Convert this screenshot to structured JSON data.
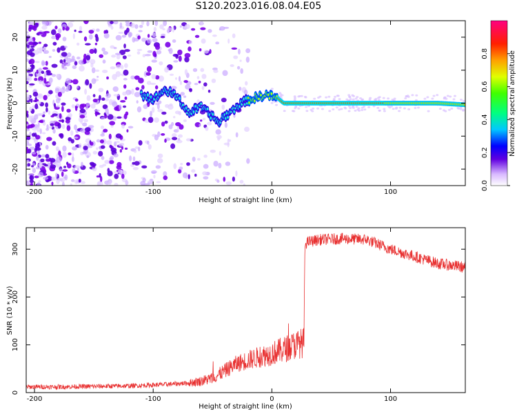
{
  "title": "S120.2023.016.08.04.E05",
  "colors": {
    "snr_line": "#e83030",
    "doppler_line": "#ff2020",
    "speckle": "#7a00e8",
    "axis": "#000000"
  },
  "chart_data": [
    {
      "type": "heatmap",
      "xlabel": "Height of straight line (km)",
      "ylabel": "Frequency (Hz)",
      "xlim": [
        -207,
        163
      ],
      "ylim": [
        -25,
        25
      ],
      "xticks": [
        -200,
        -100,
        0,
        100
      ],
      "xtick_labels": [
        "-200",
        "-100",
        "0",
        "100"
      ],
      "yticks": [
        -20,
        -10,
        0,
        10,
        20
      ],
      "ytick_labels": [
        "-20",
        "-10",
        "0",
        "10",
        "20"
      ],
      "colorbar": {
        "label": "Normalized spectral amplitude",
        "range": [
          0,
          1
        ],
        "ticks": [
          0.0,
          0.2,
          0.4,
          0.6,
          0.8
        ],
        "tick_labels": [
          "0.0",
          "0.2",
          "0.4",
          "0.6",
          "0.8"
        ]
      },
      "doppler_trace": {
        "x": [
          -110,
          -100,
          -90,
          -80,
          -70,
          -60,
          -50,
          -45,
          -40,
          -35,
          -30,
          -25,
          -20,
          -15,
          -10,
          -5,
          0,
          5,
          10,
          20,
          40,
          60,
          80,
          90,
          100,
          120,
          140,
          163
        ],
        "y": [
          3,
          1,
          4,
          2,
          -3,
          -1,
          -4,
          -6,
          -4,
          -3,
          -1,
          0,
          1,
          1.5,
          2,
          2.5,
          2,
          1.5,
          0,
          0,
          0,
          0,
          0,
          0,
          0,
          0,
          0,
          -0.5
        ]
      },
      "noise_until_km": -40,
      "grid": false
    },
    {
      "type": "line",
      "xlabel": "Height of straight line (km)",
      "ylabel": "SNR (10 * v/v)",
      "xlim": [
        -207,
        163
      ],
      "ylim": [
        0,
        345
      ],
      "xticks": [
        -200,
        -100,
        0,
        100
      ],
      "xtick_labels": [
        "-200",
        "-100",
        "0",
        "100"
      ],
      "yticks": [
        0,
        100,
        200,
        300
      ],
      "ytick_labels": [
        "0",
        "100",
        "200",
        "300"
      ],
      "series": [
        {
          "x": [
            -207,
            -180,
            -150,
            -120,
            -90,
            -70,
            -60,
            -50,
            -40,
            -30,
            -20,
            -10,
            0,
            10,
            20,
            27,
            28,
            30,
            40,
            60,
            80,
            90,
            100,
            120,
            140,
            163
          ],
          "y": [
            12,
            12,
            13,
            14,
            17,
            20,
            24,
            30,
            45,
            60,
            68,
            75,
            82,
            90,
            100,
            105,
            310,
            315,
            320,
            322,
            320,
            310,
            300,
            285,
            270,
            262
          ]
        }
      ],
      "grid": false
    }
  ]
}
